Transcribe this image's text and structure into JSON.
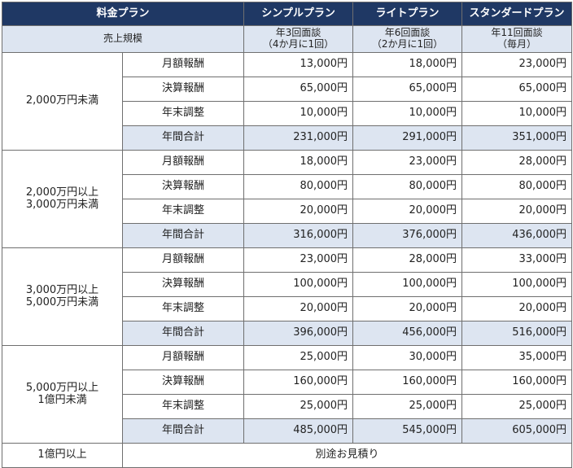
{
  "header": {
    "col0": "料金プラン",
    "plans": [
      "シンプルプラン",
      "ライトプラン",
      "スタンダードプラン"
    ]
  },
  "subheader": {
    "label": "売上規模",
    "plans": [
      {
        "line1": "年3回面談",
        "line2": "（4か月に1回）"
      },
      {
        "line1": "年6回面談",
        "line2": "（2か月に1回）"
      },
      {
        "line1": "年11回面談",
        "line2": "（毎月）"
      }
    ]
  },
  "groups": [
    {
      "range": [
        "2,000万円未満"
      ],
      "rows": [
        {
          "label": "月額報酬",
          "values": [
            "13,000円",
            "18,000円",
            "23,000円"
          ]
        },
        {
          "label": "決算報酬",
          "values": [
            "65,000円",
            "65,000円",
            "65,000円"
          ]
        },
        {
          "label": "年末調整",
          "values": [
            "10,000円",
            "10,000円",
            "10,000円"
          ]
        },
        {
          "label": "年間合計",
          "values": [
            "231,000円",
            "291,000円",
            "351,000円"
          ]
        }
      ]
    },
    {
      "range": [
        "2,000万円以上",
        "3,000万円未満"
      ],
      "rows": [
        {
          "label": "月額報酬",
          "values": [
            "18,000円",
            "23,000円",
            "28,000円"
          ]
        },
        {
          "label": "決算報酬",
          "values": [
            "80,000円",
            "80,000円",
            "80,000円"
          ]
        },
        {
          "label": "年末調整",
          "values": [
            "20,000円",
            "20,000円",
            "20,000円"
          ]
        },
        {
          "label": "年間合計",
          "values": [
            "316,000円",
            "376,000円",
            "436,000円"
          ]
        }
      ]
    },
    {
      "range": [
        "3,000万円以上",
        "5,000万円未満"
      ],
      "rows": [
        {
          "label": "月額報酬",
          "values": [
            "23,000円",
            "28,000円",
            "33,000円"
          ]
        },
        {
          "label": "決算報酬",
          "values": [
            "100,000円",
            "100,000円",
            "100,000円"
          ]
        },
        {
          "label": "年末調整",
          "values": [
            "20,000円",
            "20,000円",
            "20,000円"
          ]
        },
        {
          "label": "年間合計",
          "values": [
            "396,000円",
            "456,000円",
            "516,000円"
          ]
        }
      ]
    },
    {
      "range": [
        "5,000万円以上",
        "1億円未満"
      ],
      "rows": [
        {
          "label": "月額報酬",
          "values": [
            "25,000円",
            "30,000円",
            "35,000円"
          ]
        },
        {
          "label": "決算報酬",
          "values": [
            "160,000円",
            "160,000円",
            "160,000円"
          ]
        },
        {
          "label": "年末調整",
          "values": [
            "25,000円",
            "25,000円",
            "25,000円"
          ]
        },
        {
          "label": "年間合計",
          "values": [
            "485,000円",
            "545,000円",
            "605,000円"
          ]
        }
      ]
    }
  ],
  "last_row": {
    "range": "1億円以上",
    "note": "別途お見積り"
  },
  "colors": {
    "header_bg": "#1f3864",
    "header_text": "#ffffff",
    "shade": "#dde5f1",
    "border": "#6f6f6f"
  }
}
